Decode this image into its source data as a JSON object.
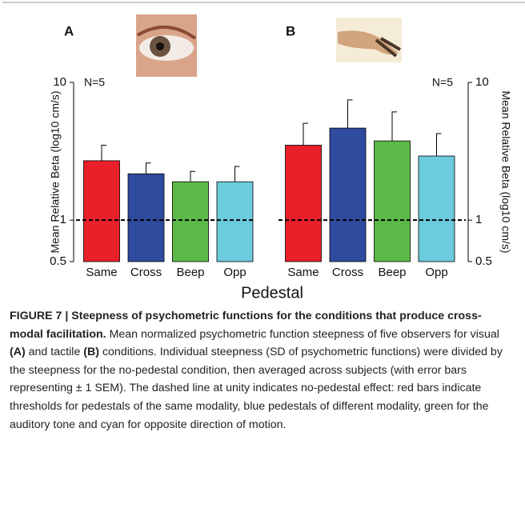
{
  "chart_data": [
    {
      "type": "bar",
      "panel_label": "A",
      "annotation": "N=5",
      "y_label": "Mean Relative Beta (log10 cm/s)",
      "y_axis_side": "left",
      "categories": [
        "Same",
        "Cross",
        "Beep",
        "Opp"
      ],
      "values": [
        2.7,
        2.17,
        1.9,
        1.9
      ],
      "errors": [
        0.8,
        0.43,
        0.36,
        0.55
      ],
      "colors": [
        "#e8202a",
        "#2e4b9e",
        "#5bb947",
        "#6ccbdc"
      ],
      "log_scale": true,
      "ylim": [
        0.5,
        10
      ],
      "yticks": [
        0.5,
        1,
        10
      ],
      "reference_line": 1
    },
    {
      "type": "bar",
      "panel_label": "B",
      "annotation": "N=5",
      "y_label": "Mean Relative Beta (log10 cm/s)",
      "y_axis_side": "right",
      "categories": [
        "Same",
        "Cross",
        "Beep",
        "Opp"
      ],
      "values": [
        3.5,
        4.66,
        3.76,
        2.92
      ],
      "errors": [
        1.55,
        2.8,
        2.35,
        1.33
      ],
      "colors": [
        "#e8202a",
        "#2e4b9e",
        "#5bb947",
        "#6ccbdc"
      ],
      "log_scale": true,
      "ylim": [
        0.5,
        10
      ],
      "yticks": [
        0.5,
        1,
        10
      ],
      "reference_line": 1
    }
  ],
  "x_label": "Pedestal",
  "caption": {
    "title": "FIGURE 7 | Steepness of psychometric functions for the conditions that produce cross-modal facilitation.",
    "parts": [
      "Mean normalized psychometric function steepness of five observers for visual",
      "(A)",
      "and tactile",
      "(B)",
      "conditions. Individual steepness (SD of psychometric functions) were divided by the steepness for the no-pedestal condition, then averaged across subjects (with error bars representing ± 1 SEM). The dashed line at unity indicates no-pedestal effect: red bars indicate thresholds for pedestals of the same modality, blue pedestals of different modality, green for the auditory tone and cyan for opposite direction of motion."
    ]
  }
}
